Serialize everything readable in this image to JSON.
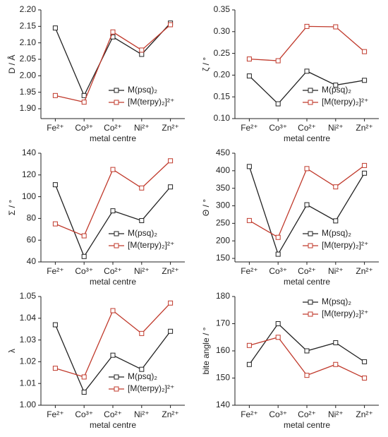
{
  "chart_data": [
    {
      "type": "line",
      "x_label": "metal centre",
      "y_label": "D / Å",
      "categories": [
        "Fe²⁺",
        "Co³⁺",
        "Co²⁺",
        "Ni²⁺",
        "Zn²⁺"
      ],
      "series": [
        {
          "name": "M(psq)₂",
          "color": "#222222",
          "values": [
            2.145,
            1.94,
            2.118,
            2.065,
            2.16
          ]
        },
        {
          "name": "[M(terpy)₂]²⁺",
          "color": "#c0392b",
          "values": [
            1.94,
            1.92,
            2.133,
            2.078,
            2.155
          ]
        }
      ],
      "ylim": [
        1.87,
        2.2
      ],
      "yticks": [
        {
          "value": 1.9,
          "label": "1.90"
        },
        1.95,
        {
          "value": 2,
          "label": "2.00"
        },
        2.05,
        {
          "value": 2.1,
          "label": "2.10"
        },
        2.15,
        {
          "value": 2.2,
          "label": "2.20"
        }
      ],
      "legend": "lower right"
    },
    {
      "type": "line",
      "x_label": "metal centre",
      "y_label": "ζ / °",
      "categories": [
        "Fe²⁺",
        "Co³⁺",
        "Co²⁺",
        "Ni²⁺",
        "Zn²⁺"
      ],
      "series": [
        {
          "name": "M(psq)₂",
          "color": "#222222",
          "values": [
            0.198,
            0.134,
            0.209,
            0.177,
            0.188
          ]
        },
        {
          "name": "[M(terpy)₂]²⁺",
          "color": "#c0392b",
          "values": [
            0.237,
            0.233,
            0.312,
            0.311,
            0.254
          ]
        }
      ],
      "ylim": [
        0.1,
        0.35
      ],
      "yticks": [
        {
          "value": 0.1,
          "label": "0.10"
        },
        0.15,
        {
          "value": 0.2,
          "label": "0.20"
        },
        0.25,
        {
          "value": 0.3,
          "label": "0.30"
        },
        0.35
      ],
      "legend": "lower right"
    },
    {
      "type": "line",
      "x_label": "metal centre",
      "y_label": "Σ / °",
      "categories": [
        "Fe²⁺",
        "Co³⁺",
        "Co²⁺",
        "Ni²⁺",
        "Zn²⁺"
      ],
      "series": [
        {
          "name": "M(psq)₂",
          "color": "#222222",
          "values": [
            111,
            45,
            87,
            78,
            109
          ]
        },
        {
          "name": "[M(terpy)₂]²⁺",
          "color": "#c0392b",
          "values": [
            75,
            64,
            125,
            108,
            133
          ]
        }
      ],
      "ylim": [
        40,
        140
      ],
      "yticks": [
        40,
        60,
        80,
        100,
        120,
        140
      ],
      "legend": "lower right"
    },
    {
      "type": "line",
      "x_label": "metal centre",
      "y_label": "Θ / °",
      "categories": [
        "Fe²⁺",
        "Co³⁺",
        "Co²⁺",
        "Ni²⁺",
        "Zn²⁺"
      ],
      "series": [
        {
          "name": "M(psq)₂",
          "color": "#222222",
          "values": [
            412,
            162,
            303,
            257,
            393
          ]
        },
        {
          "name": "[M(terpy)₂]²⁺",
          "color": "#c0392b",
          "values": [
            258,
            210,
            406,
            354,
            415
          ]
        }
      ],
      "ylim": [
        140,
        450
      ],
      "yticks": [
        150,
        200,
        250,
        300,
        350,
        400,
        450
      ],
      "legend": "lower right"
    },
    {
      "type": "line",
      "x_label": "metal centre",
      "y_label": "λ",
      "categories": [
        "Fe²⁺",
        "Co³⁺",
        "Co²⁺",
        "Ni²⁺",
        "Zn²⁺"
      ],
      "series": [
        {
          "name": "M(psq)₂",
          "color": "#222222",
          "values": [
            1.037,
            1.006,
            1.023,
            1.0165,
            1.034
          ]
        },
        {
          "name": "[M(terpy)₂]²⁺",
          "color": "#c0392b",
          "values": [
            1.017,
            1.013,
            1.0435,
            1.033,
            1.047
          ]
        }
      ],
      "ylim": [
        1,
        1.05
      ],
      "yticks": [
        {
          "value": 1,
          "label": "1.00"
        },
        1.01,
        1.02,
        1.03,
        1.04,
        1.05
      ],
      "legend": "lower right"
    },
    {
      "type": "line",
      "x_label": "metal centre",
      "y_label": "bite angle / °",
      "categories": [
        "Fe²⁺",
        "Co³⁺",
        "Co²⁺",
        "Ni²⁺",
        "Zn²⁺"
      ],
      "series": [
        {
          "name": "M(psq)₂",
          "color": "#222222",
          "values": [
            155,
            170,
            160,
            163,
            156
          ]
        },
        {
          "name": "[M(terpy)₂]²⁺",
          "color": "#c0392b",
          "values": [
            162,
            165,
            151,
            155,
            150
          ]
        }
      ],
      "ylim": [
        140,
        180
      ],
      "yticks": [
        140,
        150,
        160,
        170,
        180
      ],
      "legend": "upper right"
    }
  ]
}
